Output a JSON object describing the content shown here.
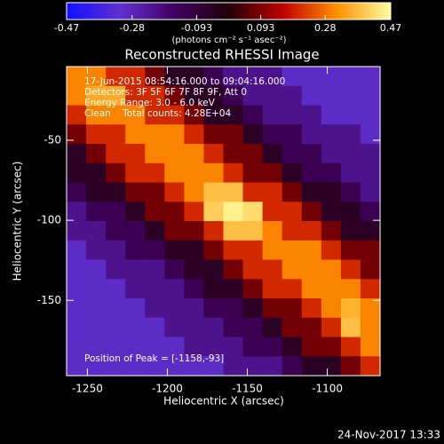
{
  "chart_data": {
    "type": "heatmap",
    "title": "Reconstructed RHESSI Image",
    "xlabel": "Heliocentric X (arcsec)",
    "ylabel": "Heliocentric Y (arcsec)",
    "xlim": [
      -1263,
      -1067
    ],
    "ylim": [
      -197,
      -4
    ],
    "xticks": [
      -1250,
      -1200,
      -1150,
      -1100
    ],
    "yticks": [
      -50,
      -100,
      -150
    ],
    "annotations": [
      "17-Jun-2015 08:54:16.000 to 09:04:16.000",
      "Detectors: 3F 5F 6F 7F 8F 9F, Att 0",
      "Energy Range: 3.0 - 6.0 keV",
      "Clean    Total counts: 4.28E+04"
    ],
    "peak_label": "Position of Peak = [-1158,-93]",
    "timestamp": "24-Nov-2017 13:33",
    "colorbar": {
      "lim": [
        -0.47,
        0.47
      ],
      "ticks": [
        -0.47,
        -0.28,
        -0.093,
        0.093,
        0.28,
        0.47
      ],
      "label": "(photons cm⁻² s⁻¹ asec⁻²)",
      "colormap": [
        "#1010ff",
        "#6030d0",
        "#400060",
        "#200008",
        "#c00000",
        "#ff9000",
        "#ffffa0"
      ]
    },
    "z": [
      [
        0.3,
        0.3,
        0.2,
        0.2,
        0.08,
        -0.05,
        -0.05,
        -0.13,
        -0.22,
        -0.22,
        -0.22,
        -0.3,
        -0.3,
        -0.3,
        -0.3,
        -0.3
      ],
      [
        0.3,
        0.35,
        0.35,
        0.2,
        0.2,
        0.08,
        -0.05,
        -0.05,
        -0.13,
        -0.22,
        -0.22,
        -0.22,
        -0.3,
        -0.3,
        -0.3,
        -0.3
      ],
      [
        0.2,
        0.3,
        0.3,
        0.3,
        0.2,
        0.2,
        0.08,
        -0.05,
        -0.05,
        -0.13,
        -0.22,
        -0.22,
        -0.22,
        -0.3,
        -0.3,
        -0.3
      ],
      [
        0.08,
        0.2,
        0.2,
        0.3,
        0.3,
        0.3,
        0.2,
        0.08,
        0.08,
        -0.05,
        -0.13,
        -0.13,
        -0.22,
        -0.22,
        -0.22,
        -0.3
      ],
      [
        -0.05,
        0.08,
        0.2,
        0.2,
        0.3,
        0.3,
        0.3,
        0.2,
        0.08,
        0.08,
        -0.05,
        -0.13,
        -0.13,
        -0.22,
        -0.22,
        -0.22
      ],
      [
        -0.05,
        -0.05,
        0.08,
        0.2,
        0.2,
        0.3,
        0.3,
        0.3,
        0.2,
        0.08,
        0.08,
        -0.05,
        -0.13,
        -0.13,
        -0.22,
        -0.22
      ],
      [
        -0.13,
        -0.05,
        -0.05,
        0.08,
        0.08,
        0.2,
        0.3,
        0.38,
        0.38,
        0.2,
        0.2,
        0.08,
        -0.05,
        -0.05,
        -0.13,
        -0.22
      ],
      [
        -0.22,
        -0.13,
        -0.13,
        -0.05,
        0.08,
        0.08,
        0.2,
        0.4,
        0.45,
        0.42,
        0.2,
        0.2,
        0.08,
        -0.05,
        -0.05,
        -0.13
      ],
      [
        -0.22,
        -0.22,
        -0.13,
        -0.13,
        -0.05,
        0.08,
        0.08,
        0.2,
        0.38,
        0.38,
        0.3,
        0.2,
        0.2,
        0.08,
        -0.05,
        -0.05
      ],
      [
        -0.3,
        -0.22,
        -0.22,
        -0.13,
        -0.13,
        -0.05,
        -0.05,
        0.08,
        0.2,
        0.2,
        0.3,
        0.3,
        0.3,
        0.2,
        0.08,
        0.08
      ],
      [
        -0.3,
        -0.3,
        -0.22,
        -0.22,
        -0.22,
        -0.13,
        -0.05,
        -0.05,
        0.08,
        0.2,
        0.2,
        0.3,
        0.3,
        0.3,
        0.2,
        0.08
      ],
      [
        -0.3,
        -0.3,
        -0.3,
        -0.22,
        -0.22,
        -0.22,
        -0.13,
        -0.05,
        -0.05,
        0.08,
        0.2,
        0.2,
        0.3,
        0.3,
        0.3,
        0.2
      ],
      [
        -0.3,
        -0.3,
        -0.3,
        -0.3,
        -0.22,
        -0.22,
        -0.22,
        -0.13,
        -0.13,
        -0.05,
        0.08,
        0.08,
        0.2,
        0.3,
        0.36,
        0.3
      ],
      [
        -0.3,
        -0.3,
        -0.3,
        -0.3,
        -0.3,
        -0.22,
        -0.22,
        -0.22,
        -0.13,
        -0.13,
        -0.05,
        0.08,
        0.08,
        0.2,
        0.38,
        0.3
      ],
      [
        -0.3,
        -0.3,
        -0.3,
        -0.3,
        -0.3,
        -0.3,
        -0.22,
        -0.22,
        -0.22,
        -0.13,
        -0.13,
        -0.05,
        0.08,
        0.08,
        0.2,
        0.3
      ],
      [
        -0.3,
        -0.3,
        -0.3,
        -0.3,
        -0.3,
        -0.3,
        -0.3,
        -0.3,
        -0.22,
        -0.22,
        -0.22,
        -0.13,
        -0.05,
        -0.05,
        0.08,
        0.2
      ]
    ]
  }
}
